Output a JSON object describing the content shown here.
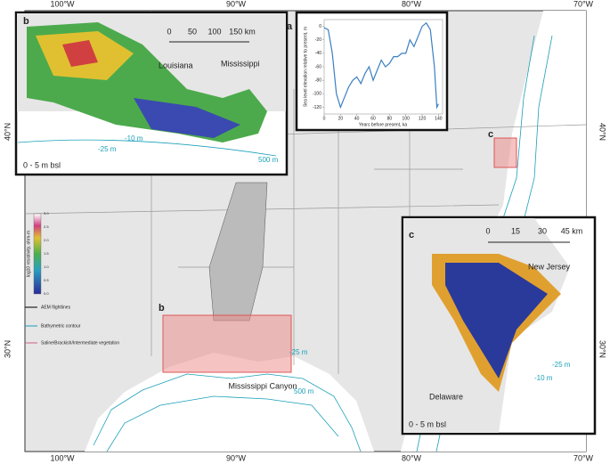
{
  "map": {
    "lon_top": [
      "100°W",
      "90°W",
      "80°W",
      "70°W"
    ],
    "lon_bottom": [
      "100°W",
      "90°W",
      "80°W",
      "70°W"
    ],
    "lat_left": [
      "40°N",
      "30°N"
    ],
    "lat_right": [
      "40°N",
      "30°N"
    ],
    "box_b": "b",
    "box_c": "c",
    "contour_25": "-25 m",
    "contour_500": "500 m",
    "canyon": "Mississippi Canyon"
  },
  "panel_b": {
    "letter": "b",
    "scale_labels": [
      "0",
      "50",
      "100",
      "150 km"
    ],
    "state1": "Louisiana",
    "state2": "Mississippi",
    "depth": "0 - 5 m bsl",
    "contour_10": "-10 m",
    "contour_25": "-25 m",
    "contour_500": "500 m"
  },
  "panel_c": {
    "letter": "c",
    "scale_labels": [
      "0",
      "15",
      "30",
      "45 km"
    ],
    "state1": "New Jersey",
    "state2": "Delaware",
    "depth": "0 - 5 m bsl",
    "contour_10": "-10 m",
    "contour_25": "-25 m"
  },
  "legend": {
    "colorbar_title": "log10 resistivity, ohm-m",
    "colorbar_ticks": [
      "0.0",
      "0.5",
      "1.0",
      "1.5",
      "2.0",
      "2.5",
      "3.0"
    ],
    "entries": [
      "AEM flightlines",
      "Bathymetric contour",
      "Saline/Brackish/Intermediate vegetation"
    ]
  },
  "chart_data": {
    "type": "line",
    "letter": "a",
    "y_label": "Sea level elevation relative to present, m",
    "x_label": "Years before present, ka",
    "x": [
      0,
      5,
      10,
      15,
      20,
      25,
      30,
      35,
      40,
      45,
      50,
      55,
      60,
      65,
      70,
      75,
      80,
      85,
      90,
      95,
      100,
      105,
      110,
      115,
      120,
      125,
      130,
      135,
      138,
      140
    ],
    "series": [
      {
        "name": "Sea level",
        "color": "#3a7fc1",
        "values": [
          -2,
          -5,
          -40,
          -100,
          -120,
          -105,
          -90,
          -80,
          -75,
          -85,
          -70,
          -60,
          -80,
          -65,
          -50,
          -60,
          -55,
          -45,
          -45,
          -40,
          -40,
          -20,
          -30,
          -15,
          0,
          5,
          -5,
          -60,
          -120,
          -115
        ]
      }
    ],
    "xlim": [
      0,
      145
    ],
    "ylim": [
      -130,
      10
    ],
    "xticks": [
      0,
      20,
      40,
      60,
      80,
      100,
      120,
      140
    ],
    "yticks": [
      0,
      -20,
      -40,
      -60,
      -80,
      -100,
      -120
    ]
  }
}
